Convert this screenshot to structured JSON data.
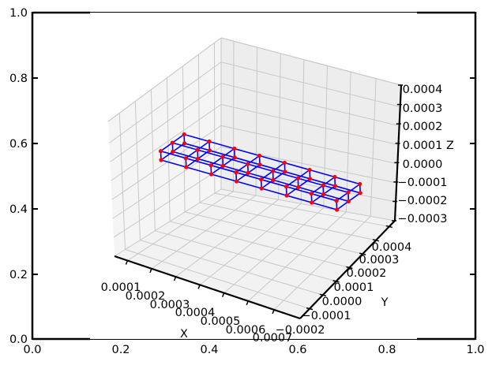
{
  "chart_data": {
    "type": "scatter3d",
    "title": "",
    "description": "3D wireframe lattice beam: nodes (red points) connected by blue edges, drawn on matplotlib 3D axes overlaid on a 2D axes frame",
    "outer_axes": {
      "xlim": [
        0.0,
        1.0
      ],
      "ylim": [
        0.0,
        1.0
      ],
      "xticks": [
        "0.0",
        "0.2",
        "0.4",
        "0.6",
        "0.8",
        "1.0"
      ],
      "yticks": [
        "0.0",
        "0.2",
        "0.4",
        "0.6",
        "0.8",
        "1.0"
      ]
    },
    "axes3d": {
      "xlabel": "X",
      "ylabel": "Y",
      "zlabel": "Z",
      "xticks": [
        "0.0001",
        "0.0002",
        "0.0003",
        "0.0004",
        "0.0005",
        "0.0006",
        "0.0007"
      ],
      "yticks": [
        "−0.0002",
        "−0.0001",
        "0.0000",
        "0.0001",
        "0.0002",
        "0.0003",
        "0.0004"
      ],
      "zticks": [
        "0.0004",
        "0.0003",
        "0.0002",
        "0.0001",
        "0.0000",
        "−0.0001",
        "−0.0002",
        "−0.0003"
      ],
      "grid": true,
      "pane_color": "#f2f2f2",
      "grid_color": "#c8c8c8"
    },
    "mesh": {
      "node_color": "#ff0000",
      "edge_color": "#0000ff",
      "sections_along_x": 8,
      "nodes_per_section_y": 3,
      "nodes_per_section_z": 2,
      "total_nodes": 48
    }
  },
  "labels": {
    "outer_x": [
      "0.0",
      "0.2",
      "0.4",
      "0.6",
      "0.8",
      "1.0"
    ],
    "outer_y": [
      "0.0",
      "0.2",
      "0.4",
      "0.6",
      "0.8",
      "1.0"
    ],
    "x3d": [
      "0.0001",
      "0.0002",
      "0.0003",
      "0.0004",
      "0.0005",
      "0.0006",
      "0.0007"
    ],
    "y3d": [
      "−0.0002",
      "−0.0001",
      "0.0000",
      "0.0001",
      "0.0002",
      "0.0003",
      "0.0004"
    ],
    "z3d": [
      "0.0004",
      "0.0003",
      "0.0002",
      "0.0001",
      "0.0000",
      "−0.0001",
      "−0.0002",
      "−0.0003"
    ],
    "xlabel": "X",
    "ylabel": "Y",
    "zlabel": "Z"
  }
}
